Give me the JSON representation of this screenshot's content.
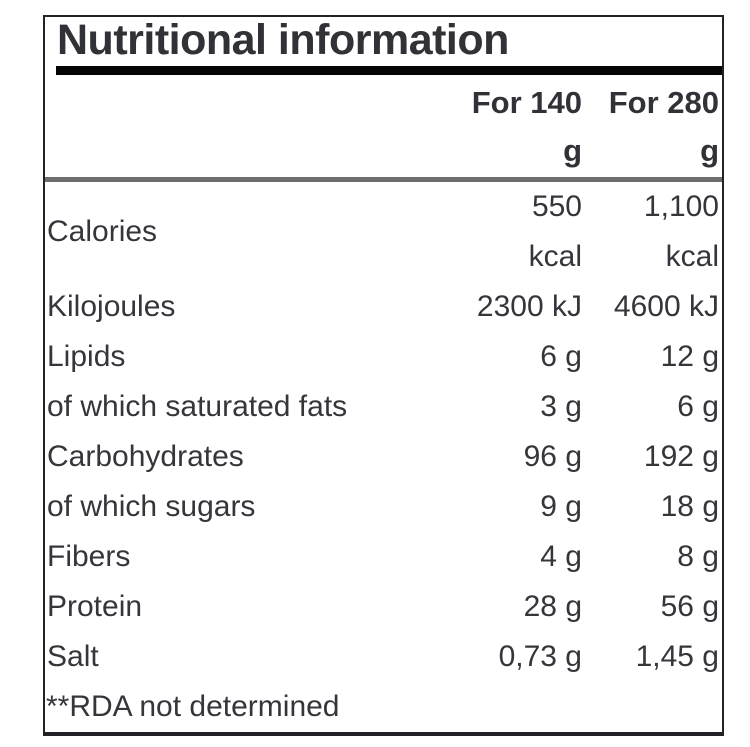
{
  "panel": {
    "title": "Nutritional information"
  },
  "table": {
    "columns": [
      {
        "name": "For 140",
        "unit": "g"
      },
      {
        "name": "For 280",
        "unit": "g"
      }
    ],
    "rows": [
      {
        "label": "Calories",
        "v1_lines": [
          "550",
          "kcal"
        ],
        "v2_lines": [
          "1,100",
          "kcal"
        ]
      },
      {
        "label": "Kilojoules",
        "v1": "2300 kJ",
        "v2": "4600 kJ"
      },
      {
        "label": "Lipids",
        "v1": "6 g",
        "v2": "12 g"
      },
      {
        "label": "of which saturated fats",
        "v1": "3 g",
        "v2": "6 g"
      },
      {
        "label": "Carbohydrates",
        "v1": "96 g",
        "v2": "192 g"
      },
      {
        "label": "of which sugars",
        "v1": "9 g",
        "v2": "18 g"
      },
      {
        "label": "Fibers",
        "v1": "4 g",
        "v2": "8 g"
      },
      {
        "label": "Protein",
        "v1": "28 g",
        "v2": "56 g"
      },
      {
        "label": "Salt",
        "v1": "0,73 g",
        "v2": "1,45 g"
      }
    ],
    "footnote": "**RDA not determined"
  },
  "colors": {
    "text": "#34363b",
    "title": "#303237",
    "title_bar": "#050505",
    "header_rule": "#6e6e6e",
    "panel_border": "#222326",
    "background": "#ffffff"
  }
}
